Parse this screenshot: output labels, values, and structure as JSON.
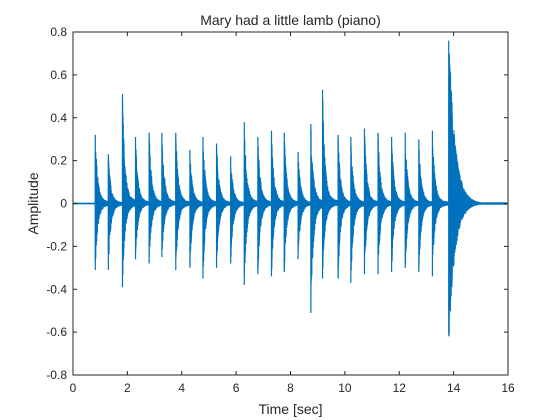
{
  "chart_data": {
    "type": "line",
    "title": "Mary had a little lamb (piano)",
    "xlabel": "Time [sec]",
    "ylabel": "Amplitude",
    "xlim": [
      0,
      16
    ],
    "ylim": [
      -0.8,
      0.8
    ],
    "xticks": [
      0,
      2,
      4,
      6,
      8,
      10,
      12,
      14,
      16
    ],
    "yticks": [
      -0.8,
      -0.6,
      -0.4,
      -0.2,
      0,
      0.2,
      0.4,
      0.6,
      0.8
    ],
    "xtick_labels": [
      "0",
      "2",
      "4",
      "6",
      "8",
      "10",
      "12",
      "14",
      "16"
    ],
    "ytick_labels": [
      "-0.8",
      "-0.6",
      "-0.4",
      "-0.2",
      "0",
      "0.2",
      "0.4",
      "0.6",
      "0.8"
    ],
    "grid": false,
    "line_color": "#0072BD",
    "series": [
      {
        "x": [
          0.82,
          1.3,
          1.82,
          2.3,
          2.8,
          3.27,
          3.78,
          4.3,
          4.78,
          5.28,
          5.8,
          6.3,
          6.8,
          7.3,
          7.77,
          8.28,
          8.75,
          9.18,
          9.75,
          10.22,
          10.72,
          11.22,
          11.72,
          12.22,
          12.72,
          13.22,
          13.82
        ],
        "peak_max": [
          0.32,
          0.23,
          0.51,
          0.31,
          0.33,
          0.33,
          0.33,
          0.25,
          0.31,
          0.28,
          0.22,
          0.38,
          0.31,
          0.34,
          0.33,
          0.24,
          0.37,
          0.53,
          0.32,
          0.31,
          0.35,
          0.33,
          0.31,
          0.33,
          0.3,
          0.34,
          0.76
        ],
        "peak_min": [
          -0.31,
          -0.31,
          -0.39,
          -0.26,
          -0.28,
          -0.25,
          -0.31,
          -0.3,
          -0.35,
          -0.3,
          -0.28,
          -0.38,
          -0.33,
          -0.34,
          -0.32,
          -0.26,
          -0.51,
          -0.35,
          -0.35,
          -0.37,
          -0.33,
          -0.33,
          -0.32,
          -0.3,
          -0.32,
          -0.34,
          -0.62
        ]
      }
    ]
  }
}
